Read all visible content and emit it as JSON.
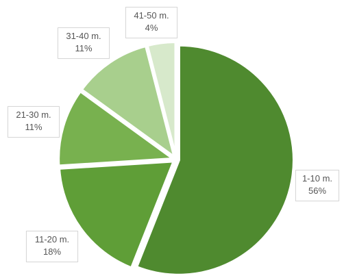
{
  "chart_data": {
    "type": "pie",
    "categories": [
      "1-10 m.",
      "11-20 m.",
      "21-30 m.",
      "31-40 m.",
      "41-50 m."
    ],
    "values": [
      56,
      18,
      11,
      11,
      4
    ],
    "labels": [
      "56%",
      "18%",
      "11%",
      "11%",
      "4%"
    ],
    "colors": [
      "#4f8a2f",
      "#5f9e37",
      "#78b14f",
      "#a8cf8d",
      "#d7e9cb"
    ]
  }
}
